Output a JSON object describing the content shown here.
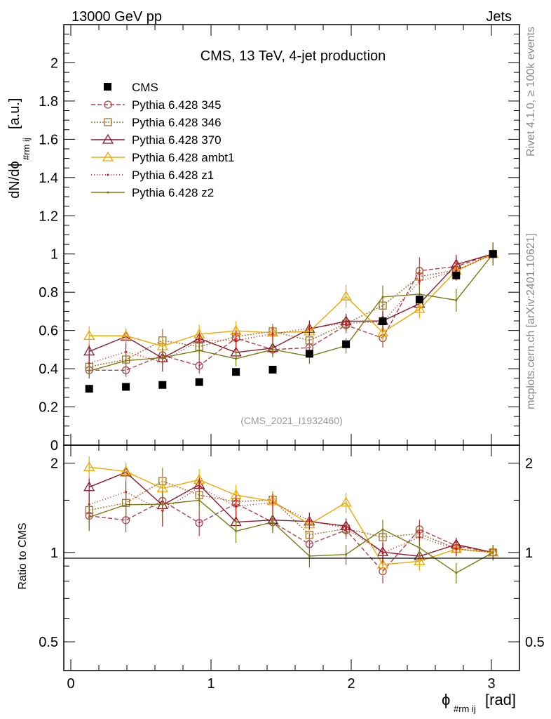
{
  "header": {
    "left": "13000 GeV pp",
    "right": "Jets"
  },
  "side_labels": {
    "rivet": "Rivet 4.1.0, ≥ 100k events",
    "mcplots": "mcplots.cern.ch [arXiv:2401.10621]"
  },
  "chart_data": {
    "type": "line",
    "title": "CMS, 13 TeV, 4-jet production",
    "analysis_id": "(CMS_2021_I1932460)",
    "xlabel": "ϕ",
    "xlabel_sub": "#rm ij",
    "xlabel_unit": "[rad]",
    "ylabel": "dN/dϕ",
    "ylabel_sub": "#rm ij",
    "ylabel_unit": "[a.u.]",
    "ratio_ylabel": "Ratio to CMS",
    "xlim": [
      -0.05,
      3.2
    ],
    "ylim": [
      0,
      2.2
    ],
    "ratio_ylim": [
      0.4,
      2.3
    ],
    "x_ticks": [
      0,
      1,
      2,
      3
    ],
    "y_ticks": [
      0,
      0.2,
      0.4,
      0.6,
      0.8,
      1,
      1.2,
      1.4,
      1.6,
      1.8,
      2
    ],
    "y_tick_labels": [
      "0",
      "0.2",
      "0.4",
      "0.6",
      "0.8",
      "1",
      "1.2",
      "1.4",
      "1.6",
      "1.8",
      "2"
    ],
    "ratio_ticks": [
      0.5,
      1,
      2
    ],
    "ratio_tick_labels": [
      "0.5",
      "1",
      "2"
    ],
    "x": [
      0.131,
      0.393,
      0.654,
      0.916,
      1.178,
      1.44,
      1.702,
      1.963,
      2.225,
      2.487,
      2.749,
      3.011
    ],
    "data": {
      "name": "CMS",
      "color": "#000000",
      "values": [
        0.295,
        0.305,
        0.315,
        0.33,
        0.383,
        0.395,
        0.478,
        0.528,
        0.648,
        0.762,
        0.888,
        1.0
      ]
    },
    "series": [
      {
        "name": "Pythia 6.428 345",
        "color": "#b04050",
        "dash": "6,3",
        "marker": "circle",
        "values": [
          0.392,
          0.392,
          0.47,
          0.415,
          0.56,
          0.5,
          0.51,
          0.628,
          0.56,
          0.912,
          0.935,
          1.0
        ],
        "errors": [
          0.04,
          0.035,
          0.05,
          0.04,
          0.05,
          0.04,
          0.04,
          0.04,
          0.05,
          0.07,
          0.05,
          0.06
        ]
      },
      {
        "name": "Pythia 6.428 346",
        "color": "#a07030",
        "dash": "2,2",
        "marker": "square",
        "values": [
          0.41,
          0.448,
          0.548,
          0.515,
          0.568,
          0.595,
          0.548,
          0.635,
          0.73,
          0.882,
          0.915,
          1.0
        ],
        "errors": [
          0.04,
          0.04,
          0.06,
          0.04,
          0.05,
          0.04,
          0.04,
          0.05,
          0.05,
          0.06,
          0.05,
          0.06
        ]
      },
      {
        "name": "Pythia 6.428 370",
        "color": "#8b1a2c",
        "dash": "",
        "marker": "triangle",
        "values": [
          0.49,
          0.568,
          0.455,
          0.558,
          0.485,
          0.508,
          0.608,
          0.648,
          0.65,
          0.74,
          0.945,
          1.0
        ],
        "errors": [
          0.04,
          0.04,
          0.05,
          0.04,
          0.04,
          0.04,
          0.04,
          0.04,
          0.05,
          0.05,
          0.05,
          0.06
        ]
      },
      {
        "name": "Pythia 6.428 ambt1",
        "color": "#f0a800",
        "dash": "",
        "marker": "triangle",
        "values": [
          0.572,
          0.572,
          0.518,
          0.58,
          0.598,
          0.588,
          0.595,
          0.778,
          0.59,
          0.712,
          0.912,
          1.0
        ],
        "errors": [
          0.05,
          0.04,
          0.05,
          0.05,
          0.05,
          0.04,
          0.04,
          0.06,
          0.05,
          0.05,
          0.05,
          0.06
        ]
      },
      {
        "name": "Pythia 6.428 z1",
        "color": "#d01010",
        "dash": "1,3",
        "marker": "dot",
        "values": [
          0.428,
          0.488,
          0.435,
          0.548,
          0.548,
          0.582,
          0.612,
          0.638,
          0.645,
          0.858,
          0.912,
          1.0
        ],
        "errors": [
          0.04,
          0.04,
          0.05,
          0.04,
          0.05,
          0.04,
          0.04,
          0.04,
          0.05,
          0.05,
          0.05,
          0.06
        ]
      },
      {
        "name": "Pythia 6.428 z2",
        "color": "#7a7a10",
        "dash": "",
        "marker": "dot",
        "values": [
          0.388,
          0.442,
          0.458,
          0.495,
          0.452,
          0.5,
          0.465,
          0.52,
          0.775,
          0.79,
          0.758,
          1.0
        ],
        "errors": [
          0.04,
          0.04,
          0.05,
          0.04,
          0.04,
          0.04,
          0.04,
          0.04,
          0.06,
          0.05,
          0.06,
          0.06
        ]
      }
    ]
  }
}
